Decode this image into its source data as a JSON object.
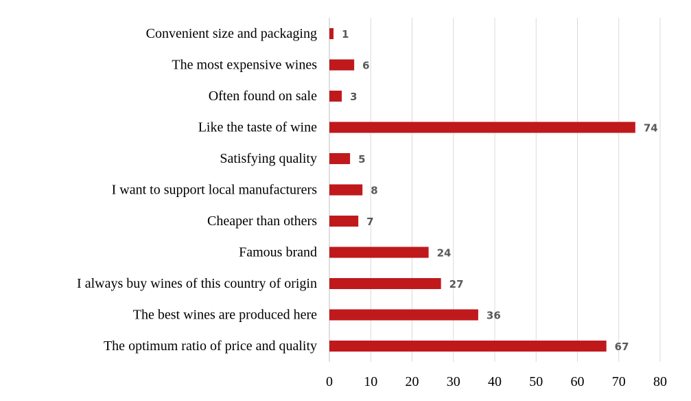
{
  "chart_data": {
    "type": "bar",
    "orientation": "horizontal",
    "categories": [
      "Convenient size and packaging",
      "The most expensive wines",
      "Often found on sale",
      "Like the taste of wine",
      "Satisfying quality",
      "I want to support local manufacturers",
      "Cheaper than others",
      "Famous brand",
      "I always buy wines of this country of origin",
      "The best wines are produced here",
      "The optimum ratio of price and quality"
    ],
    "values": [
      1,
      6,
      3,
      74,
      5,
      8,
      7,
      24,
      27,
      36,
      67
    ],
    "xlim": [
      0,
      80
    ],
    "xticks": [
      0,
      10,
      20,
      30,
      40,
      50,
      60,
      70,
      80
    ],
    "grid": "vertical",
    "data_labels": true,
    "colors": {
      "bar": "#c0191c",
      "data_label": "#595959",
      "grid": "#d9d9d9"
    }
  }
}
